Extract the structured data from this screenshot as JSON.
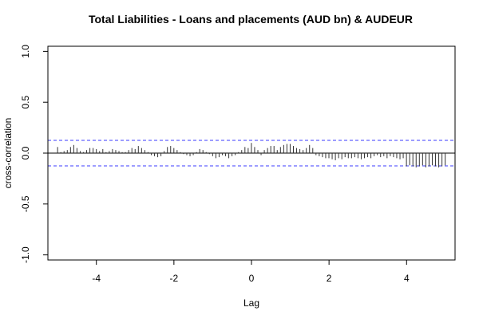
{
  "chart_data": {
    "type": "bar",
    "title": "Total Liabilities - Loans and placements (AUD bn) & AUDEUR",
    "xlabel": "Lag",
    "ylabel": "cross-correlation",
    "xlim": [
      -5.25,
      5.25
    ],
    "ylim": [
      -1.05,
      1.05
    ],
    "x_ticks": [
      -4,
      -2,
      0,
      2,
      4
    ],
    "x_tick_labels": [
      "-4",
      "-2",
      "0",
      "2",
      "4"
    ],
    "y_ticks": [
      -1.0,
      -0.5,
      0.0,
      0.5,
      1.0
    ],
    "y_tick_labels": [
      "-1.0",
      "-0.5",
      "0.0",
      "0.5",
      "1.0"
    ],
    "confidence_bounds": [
      0.125,
      -0.125
    ],
    "grid": false,
    "lag_step": 0.0833,
    "lag_start": -5.0,
    "values": [
      0.06,
      0.01,
      0.02,
      0.03,
      0.06,
      0.08,
      0.05,
      0.02,
      0.01,
      0.03,
      0.05,
      0.05,
      0.04,
      0.02,
      0.04,
      0.01,
      0.02,
      0.04,
      0.03,
      0.02,
      0.01,
      0.01,
      0.03,
      0.05,
      0.04,
      0.07,
      0.05,
      0.03,
      0.01,
      -0.02,
      -0.03,
      -0.04,
      -0.03,
      0.02,
      0.06,
      0.07,
      0.05,
      0.03,
      0.01,
      -0.01,
      -0.02,
      -0.03,
      -0.02,
      0.01,
      0.04,
      0.03,
      0.01,
      -0.01,
      -0.03,
      -0.05,
      -0.04,
      -0.02,
      -0.03,
      -0.05,
      -0.03,
      -0.02,
      0.01,
      0.03,
      0.06,
      0.05,
      0.1,
      0.06,
      0.03,
      -0.02,
      0.03,
      0.05,
      0.07,
      0.07,
      0.03,
      0.06,
      0.08,
      0.09,
      0.09,
      0.07,
      0.05,
      0.04,
      0.03,
      0.05,
      0.08,
      0.05,
      -0.02,
      -0.03,
      -0.04,
      -0.05,
      -0.05,
      -0.06,
      -0.07,
      -0.05,
      -0.06,
      -0.04,
      -0.05,
      -0.05,
      -0.04,
      -0.05,
      -0.06,
      -0.05,
      -0.04,
      -0.05,
      -0.03,
      -0.02,
      -0.04,
      -0.03,
      -0.05,
      -0.03,
      -0.04,
      -0.05,
      -0.06,
      -0.05,
      -0.13,
      -0.12,
      -0.13,
      -0.14,
      -0.13,
      -0.12,
      -0.14,
      -0.13,
      -0.12,
      -0.13,
      -0.14,
      -0.13,
      -0.12
    ]
  }
}
